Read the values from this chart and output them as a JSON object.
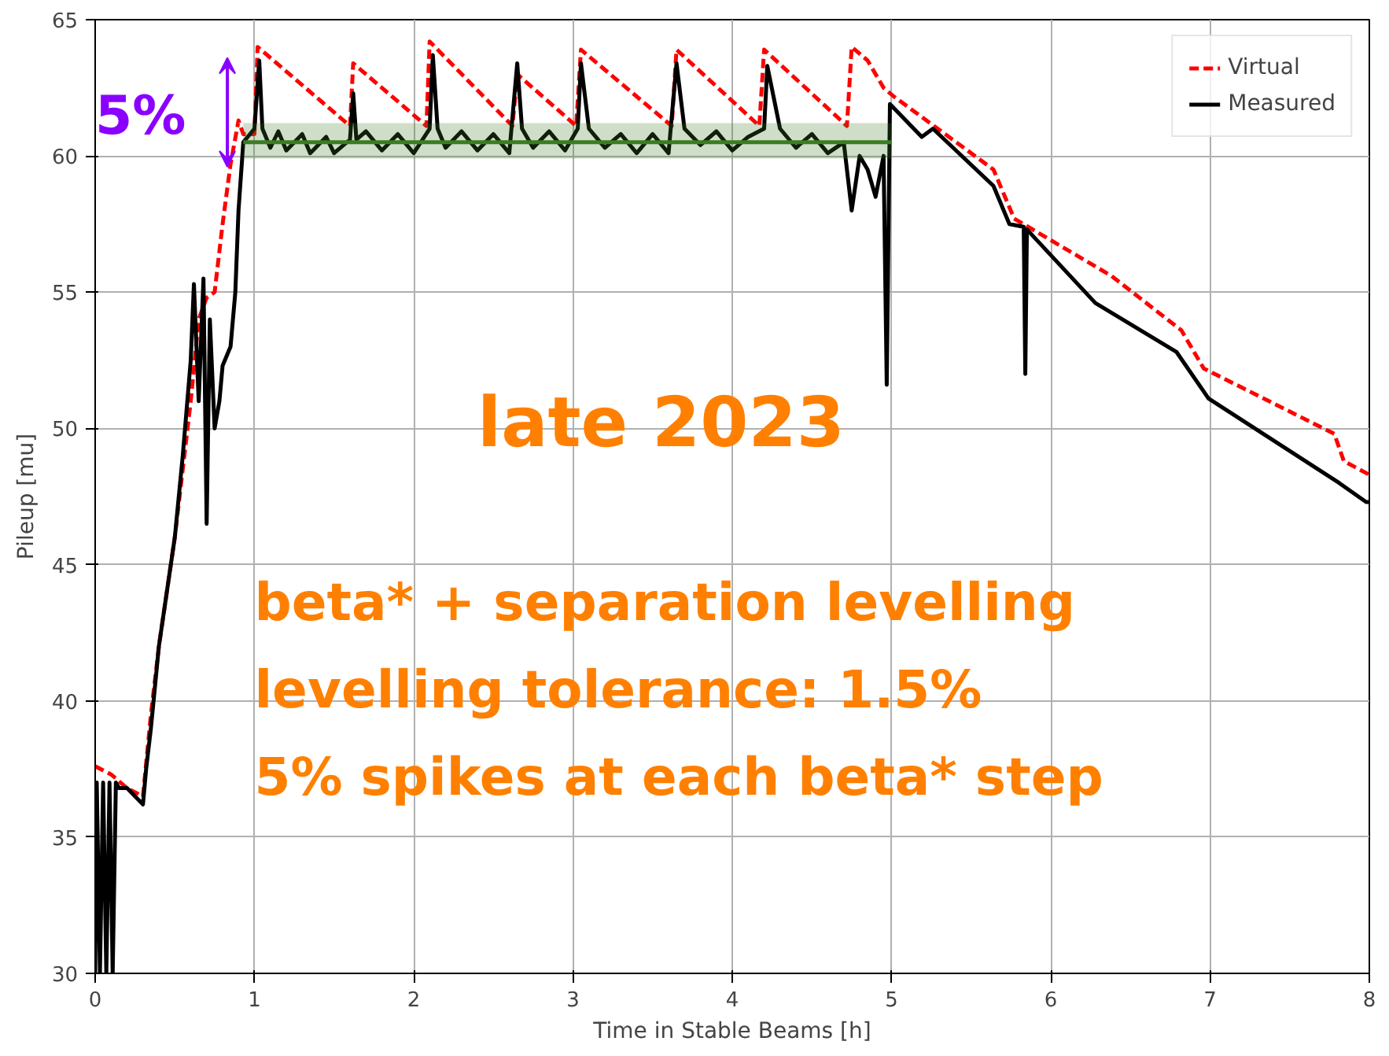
{
  "chart_data": {
    "type": "line",
    "xlabel": "Time in Stable Beams [h]",
    "ylabel": "Pileup [mu]",
    "xlim": [
      0,
      8
    ],
    "xticks": [
      0,
      1,
      2,
      3,
      4,
      5,
      6,
      7,
      8
    ],
    "ylim": [
      30,
      65
    ],
    "yticks": [
      30,
      35,
      40,
      45,
      50,
      55,
      60,
      65
    ],
    "grid": true,
    "legend": "top right",
    "marker": "none",
    "annotations": [
      "5%",
      "late 2023",
      "beta* + separation levelling\nlevelling tolerance: 1.5%\n5% spikes at each beta* step"
    ],
    "series": [
      {
        "name": "Virtual",
        "color": "#ff0000",
        "line_style": "dashed",
        "x": [
          0,
          0.1,
          0.2,
          0.3,
          0.35,
          0.4,
          0.5,
          0.6,
          0.65,
          0.7,
          0.75,
          0.8,
          0.85,
          0.9,
          0.93,
          1.0,
          1.02,
          1.6,
          1.62,
          2.08,
          2.1,
          2.62,
          2.65,
          3.02,
          3.05,
          3.62,
          3.65,
          4.17,
          4.2,
          4.72,
          4.75,
          4.85,
          4.95,
          5.01,
          5.64,
          5.77,
          6.38,
          6.82,
          6.96,
          7.78,
          7.84,
          8.0
        ],
        "values": [
          37.6,
          37.3,
          36.8,
          36.5,
          39.5,
          42,
          46,
          51,
          54,
          54.8,
          55,
          57.5,
          59.7,
          61.3,
          60.8,
          60.8,
          64,
          61.1,
          63.4,
          61.1,
          64.2,
          61.1,
          63.0,
          61.1,
          63.9,
          61.1,
          63.9,
          61.1,
          63.9,
          61.1,
          64,
          63.5,
          62.5,
          62.2,
          59.5,
          57.7,
          55.6,
          53.6,
          52.2,
          49.8,
          48.8,
          48.3
        ]
      },
      {
        "name": "Measured",
        "color": "#000000",
        "line_style": "solid",
        "x": [
          0,
          0.01,
          0.03,
          0.05,
          0.07,
          0.09,
          0.11,
          0.13,
          0.15,
          0.2,
          0.3,
          0.32,
          0.35,
          0.4,
          0.45,
          0.5,
          0.55,
          0.6,
          0.62,
          0.65,
          0.68,
          0.7,
          0.72,
          0.75,
          0.78,
          0.8,
          0.85,
          0.88,
          0.9,
          0.93,
          1.0,
          1.03,
          1.05,
          1.1,
          1.15,
          1.2,
          1.3,
          1.35,
          1.45,
          1.5,
          1.6,
          1.62,
          1.64,
          1.7,
          1.8,
          1.9,
          2.0,
          2.1,
          2.12,
          2.15,
          2.2,
          2.3,
          2.4,
          2.5,
          2.6,
          2.65,
          2.68,
          2.75,
          2.85,
          2.95,
          3.03,
          3.05,
          3.1,
          3.2,
          3.3,
          3.4,
          3.5,
          3.6,
          3.65,
          3.7,
          3.8,
          3.9,
          4.0,
          4.1,
          4.2,
          4.22,
          4.3,
          4.4,
          4.5,
          4.6,
          4.7,
          4.75,
          4.8,
          4.85,
          4.9,
          4.95,
          4.97,
          4.99,
          5.19,
          5.26,
          5.64,
          5.74,
          5.83,
          5.84,
          5.85,
          6.28,
          6.79,
          6.99,
          7.81,
          7.98,
          8.0
        ],
        "values": [
          30,
          37,
          30,
          37,
          30,
          37,
          30,
          37,
          36.8,
          36.8,
          36.2,
          37.5,
          39,
          42,
          44,
          46,
          49,
          52.5,
          55.3,
          51,
          55.5,
          46.5,
          54,
          50,
          51,
          52.3,
          53,
          55,
          58,
          60.5,
          61,
          63.5,
          61,
          60.3,
          60.9,
          60.2,
          60.8,
          60.1,
          60.7,
          60.1,
          60.6,
          62.3,
          60.6,
          60.9,
          60.2,
          60.8,
          60.1,
          61,
          63.7,
          61,
          60.3,
          60.9,
          60.2,
          60.8,
          60.1,
          63.4,
          61,
          60.3,
          60.9,
          60.2,
          61,
          63.4,
          61,
          60.3,
          60.8,
          60.1,
          60.8,
          60.1,
          63.4,
          61,
          60.4,
          60.9,
          60.2,
          60.7,
          61,
          63.3,
          61,
          60.3,
          60.8,
          60.1,
          60.5,
          58,
          60,
          59.5,
          58.5,
          60,
          51.6,
          61.9,
          60.7,
          61.0,
          58.9,
          57.5,
          57.4,
          52.0,
          57.3,
          54.6,
          52.8,
          51.1,
          48.0,
          47.3,
          47.3
        ]
      },
      {
        "color": "#3a7d22",
        "line_style": "solid",
        "x": [
          0.93,
          5.0
        ],
        "values": [
          60.5,
          60.5
        ],
        "lower": [
          59.9,
          59.9
        ],
        "upper": [
          61.2,
          61.2
        ]
      }
    ]
  }
}
